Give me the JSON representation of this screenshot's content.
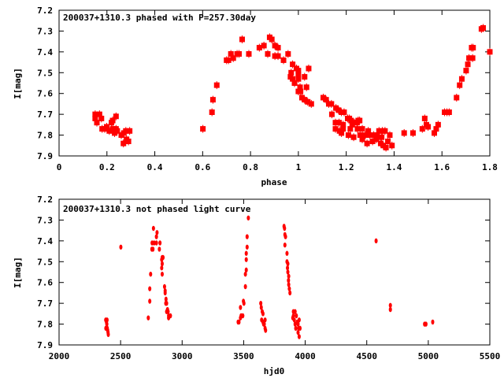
{
  "colors": {
    "marker": "#ff0000",
    "axis": "#000000"
  },
  "chart_data": [
    {
      "type": "scatter",
      "title": "200037+1310.3 phased with P=257.30day",
      "xlabel": "phase",
      "ylabel": "I[mag]",
      "xlim": [
        0,
        1.8
      ],
      "ylim": [
        7.2,
        7.9
      ],
      "y_inverted": true,
      "grid": false,
      "xticks": [
        "0",
        "0.2",
        "0.4",
        "0.6",
        "0.8",
        "1",
        "1.2",
        "1.4",
        "1.6",
        "1.8"
      ],
      "xtick_values": [
        0,
        0.2,
        0.4,
        0.6,
        0.8,
        1,
        1.2,
        1.4,
        1.6,
        1.8
      ],
      "yticks": [
        "7.2",
        "7.3",
        "7.4",
        "7.5",
        "7.6",
        "7.7",
        "7.8",
        "7.9"
      ],
      "ytick_values": [
        7.2,
        7.3,
        7.4,
        7.5,
        7.6,
        7.7,
        7.8,
        7.9
      ],
      "points": [
        [
          0.151,
          7.7
        ],
        [
          0.151,
          7.72
        ],
        [
          0.158,
          7.74
        ],
        [
          0.169,
          7.7
        ],
        [
          0.177,
          7.72
        ],
        [
          0.18,
          7.77
        ],
        [
          0.191,
          7.77
        ],
        [
          0.199,
          7.76
        ],
        [
          0.21,
          7.78
        ],
        [
          0.219,
          7.74
        ],
        [
          0.224,
          7.73
        ],
        [
          0.238,
          7.71
        ],
        [
          0.224,
          7.77
        ],
        [
          0.232,
          7.79
        ],
        [
          0.238,
          7.77
        ],
        [
          0.243,
          7.78
        ],
        [
          0.26,
          7.8
        ],
        [
          0.271,
          7.79
        ],
        [
          0.279,
          7.78
        ],
        [
          0.295,
          7.78
        ],
        [
          0.269,
          7.84
        ],
        [
          0.282,
          7.82
        ],
        [
          0.29,
          7.83
        ],
        [
          0.601,
          7.77
        ],
        [
          0.639,
          7.69
        ],
        [
          0.643,
          7.63
        ],
        [
          0.659,
          7.56
        ],
        [
          0.7,
          7.44
        ],
        [
          0.708,
          7.44
        ],
        [
          0.718,
          7.41
        ],
        [
          0.728,
          7.43
        ],
        [
          0.744,
          7.41
        ],
        [
          0.752,
          7.41
        ],
        [
          0.765,
          7.34
        ],
        [
          0.793,
          7.41
        ],
        [
          0.837,
          7.38
        ],
        [
          0.856,
          7.37
        ],
        [
          0.872,
          7.41
        ],
        [
          0.88,
          7.33
        ],
        [
          0.889,
          7.34
        ],
        [
          0.902,
          7.37
        ],
        [
          0.915,
          7.38
        ],
        [
          0.902,
          7.42
        ],
        [
          0.915,
          7.42
        ],
        [
          0.938,
          7.44
        ],
        [
          0.957,
          7.41
        ],
        [
          0.976,
          7.46
        ],
        [
          0.97,
          7.5
        ],
        [
          0.967,
          7.52
        ],
        [
          0.976,
          7.53
        ],
        [
          0.984,
          7.55
        ],
        [
          0.992,
          7.48
        ],
        [
          1.0,
          7.49
        ],
        [
          1.0,
          7.51
        ],
        [
          1.0,
          7.53
        ],
        [
          1.007,
          7.57
        ],
        [
          1.0,
          7.59
        ],
        [
          1.009,
          7.59
        ],
        [
          1.026,
          7.52
        ],
        [
          1.043,
          7.48
        ],
        [
          1.034,
          7.57
        ],
        [
          1.015,
          7.62
        ],
        [
          1.026,
          7.63
        ],
        [
          1.039,
          7.64
        ],
        [
          1.054,
          7.65
        ],
        [
          1.104,
          7.62
        ],
        [
          1.116,
          7.63
        ],
        [
          1.127,
          7.65
        ],
        [
          1.138,
          7.65
        ],
        [
          1.14,
          7.7
        ],
        [
          1.157,
          7.67
        ],
        [
          1.168,
          7.68
        ],
        [
          1.18,
          7.69
        ],
        [
          1.191,
          7.69
        ],
        [
          1.155,
          7.74
        ],
        [
          1.155,
          7.77
        ],
        [
          1.17,
          7.74
        ],
        [
          1.172,
          7.78
        ],
        [
          1.18,
          7.79
        ],
        [
          1.187,
          7.75
        ],
        [
          1.187,
          7.77
        ],
        [
          1.206,
          7.72
        ],
        [
          1.213,
          7.72
        ],
        [
          1.22,
          7.73
        ],
        [
          1.209,
          7.8
        ],
        [
          1.217,
          7.77
        ],
        [
          1.225,
          7.75
        ],
        [
          1.234,
          7.74
        ],
        [
          1.231,
          7.81
        ],
        [
          1.245,
          7.74
        ],
        [
          1.25,
          7.73
        ],
        [
          1.256,
          7.73
        ],
        [
          1.247,
          7.77
        ],
        [
          1.258,
          7.8
        ],
        [
          1.267,
          7.77
        ],
        [
          1.267,
          7.82
        ],
        [
          1.28,
          7.8
        ],
        [
          1.287,
          7.84
        ],
        [
          1.292,
          7.78
        ],
        [
          1.299,
          7.8
        ],
        [
          1.31,
          7.83
        ],
        [
          1.315,
          7.8
        ],
        [
          1.326,
          7.82
        ],
        [
          1.329,
          7.8
        ],
        [
          1.337,
          7.78
        ],
        [
          1.344,
          7.84
        ],
        [
          1.348,
          7.81
        ],
        [
          1.351,
          7.78
        ],
        [
          1.355,
          7.85
        ],
        [
          1.362,
          7.78
        ],
        [
          1.366,
          7.86
        ],
        [
          1.374,
          7.83
        ],
        [
          1.382,
          7.8
        ],
        [
          1.391,
          7.85
        ],
        [
          1.442,
          7.79
        ],
        [
          1.479,
          7.79
        ],
        [
          1.518,
          7.77
        ],
        [
          1.528,
          7.72
        ],
        [
          1.535,
          7.75
        ],
        [
          1.542,
          7.76
        ],
        [
          1.568,
          7.79
        ],
        [
          1.576,
          7.77
        ],
        [
          1.584,
          7.75
        ],
        [
          1.611,
          7.69
        ],
        [
          1.621,
          7.69
        ],
        [
          1.63,
          7.69
        ],
        [
          1.661,
          7.62
        ],
        [
          1.674,
          7.56
        ],
        [
          1.683,
          7.53
        ],
        [
          1.701,
          7.49
        ],
        [
          1.708,
          7.46
        ],
        [
          1.713,
          7.43
        ],
        [
          1.728,
          7.43
        ],
        [
          1.724,
          7.38
        ],
        [
          1.73,
          7.38
        ],
        [
          1.765,
          7.29
        ],
        [
          1.772,
          7.285
        ],
        [
          1.8,
          7.4
        ]
      ]
    },
    {
      "type": "scatter",
      "title": "200037+1310.3 not phased light curve",
      "xlabel": "hjd0",
      "ylabel": "I[mag]",
      "xlim": [
        2000,
        5500
      ],
      "ylim": [
        7.2,
        7.9
      ],
      "y_inverted": true,
      "grid": false,
      "xticks": [
        "2000",
        "2500",
        "3000",
        "3500",
        "4000",
        "4500",
        "5000",
        "5500"
      ],
      "xtick_values": [
        2000,
        2500,
        3000,
        3500,
        4000,
        4500,
        5000,
        5500
      ],
      "yticks": [
        "7.2",
        "7.3",
        "7.4",
        "7.5",
        "7.6",
        "7.7",
        "7.8",
        "7.9"
      ],
      "ytick_values": [
        7.2,
        7.3,
        7.4,
        7.5,
        7.6,
        7.7,
        7.8,
        7.9
      ],
      "points": [
        [
          2379,
          7.78
        ],
        [
          2380,
          7.82
        ],
        [
          2385,
          7.79
        ],
        [
          2388,
          7.8
        ],
        [
          2390,
          7.78
        ],
        [
          2392,
          7.82
        ],
        [
          2395,
          7.83
        ],
        [
          2398,
          7.84
        ],
        [
          2400,
          7.85
        ],
        [
          2502,
          7.43
        ],
        [
          2725,
          7.77
        ],
        [
          2737,
          7.69
        ],
        [
          2737,
          7.63
        ],
        [
          2744,
          7.56
        ],
        [
          2754,
          7.44
        ],
        [
          2763,
          7.44
        ],
        [
          2756,
          7.41
        ],
        [
          2772,
          7.41
        ],
        [
          2767,
          7.34
        ],
        [
          2791,
          7.38
        ],
        [
          2796,
          7.36
        ],
        [
          2791,
          7.41
        ],
        [
          2820,
          7.41
        ],
        [
          2815,
          7.44
        ],
        [
          2838,
          7.48
        ],
        [
          2845,
          7.48
        ],
        [
          2834,
          7.49
        ],
        [
          2834,
          7.53
        ],
        [
          2838,
          7.51
        ],
        [
          2838,
          7.56
        ],
        [
          2857,
          7.62
        ],
        [
          2862,
          7.64
        ],
        [
          2862,
          7.65
        ],
        [
          2869,
          7.68
        ],
        [
          2867,
          7.7
        ],
        [
          2874,
          7.7
        ],
        [
          2881,
          7.73
        ],
        [
          2874,
          7.74
        ],
        [
          2886,
          7.74
        ],
        [
          2890,
          7.76
        ],
        [
          2890,
          7.77
        ],
        [
          2905,
          7.76
        ],
        [
          3455,
          7.79
        ],
        [
          3462,
          7.79
        ],
        [
          3474,
          7.77
        ],
        [
          3479,
          7.76
        ],
        [
          3493,
          7.76
        ],
        [
          3474,
          7.72
        ],
        [
          3498,
          7.69
        ],
        [
          3502,
          7.7
        ],
        [
          3514,
          7.62
        ],
        [
          3514,
          7.56
        ],
        [
          3521,
          7.54
        ],
        [
          3521,
          7.49
        ],
        [
          3521,
          7.46
        ],
        [
          3528,
          7.43
        ],
        [
          3528,
          7.38
        ],
        [
          3538,
          7.29
        ],
        [
          3639,
          7.7
        ],
        [
          3643,
          7.72
        ],
        [
          3651,
          7.74
        ],
        [
          3657,
          7.75
        ],
        [
          3646,
          7.78
        ],
        [
          3657,
          7.79
        ],
        [
          3667,
          7.8
        ],
        [
          3674,
          7.78
        ],
        [
          3674,
          7.82
        ],
        [
          3678,
          7.83
        ],
        [
          3662,
          7.8
        ],
        [
          3828,
          7.33
        ],
        [
          3832,
          7.34
        ],
        [
          3835,
          7.37
        ],
        [
          3840,
          7.38
        ],
        [
          3835,
          7.42
        ],
        [
          3852,
          7.46
        ],
        [
          3852,
          7.5
        ],
        [
          3859,
          7.51
        ],
        [
          3856,
          7.53
        ],
        [
          3859,
          7.55
        ],
        [
          3866,
          7.57
        ],
        [
          3864,
          7.59
        ],
        [
          3866,
          7.61
        ],
        [
          3871,
          7.63
        ],
        [
          3876,
          7.65
        ],
        [
          3904,
          7.74
        ],
        [
          3918,
          7.74
        ],
        [
          3904,
          7.76
        ],
        [
          3911,
          7.78
        ],
        [
          3918,
          7.8
        ],
        [
          3923,
          7.82
        ],
        [
          3935,
          7.79
        ],
        [
          3942,
          7.8
        ],
        [
          3951,
          7.78
        ],
        [
          3946,
          7.82
        ],
        [
          3958,
          7.82
        ],
        [
          3942,
          7.84
        ],
        [
          3951,
          7.86
        ],
        [
          3928,
          7.76
        ],
        [
          3899,
          7.77
        ],
        [
          4576,
          7.4
        ],
        [
          4692,
          7.71
        ],
        [
          4692,
          7.73
        ],
        [
          4970,
          7.8
        ],
        [
          4981,
          7.8
        ],
        [
          5036,
          7.79
        ]
      ]
    }
  ]
}
